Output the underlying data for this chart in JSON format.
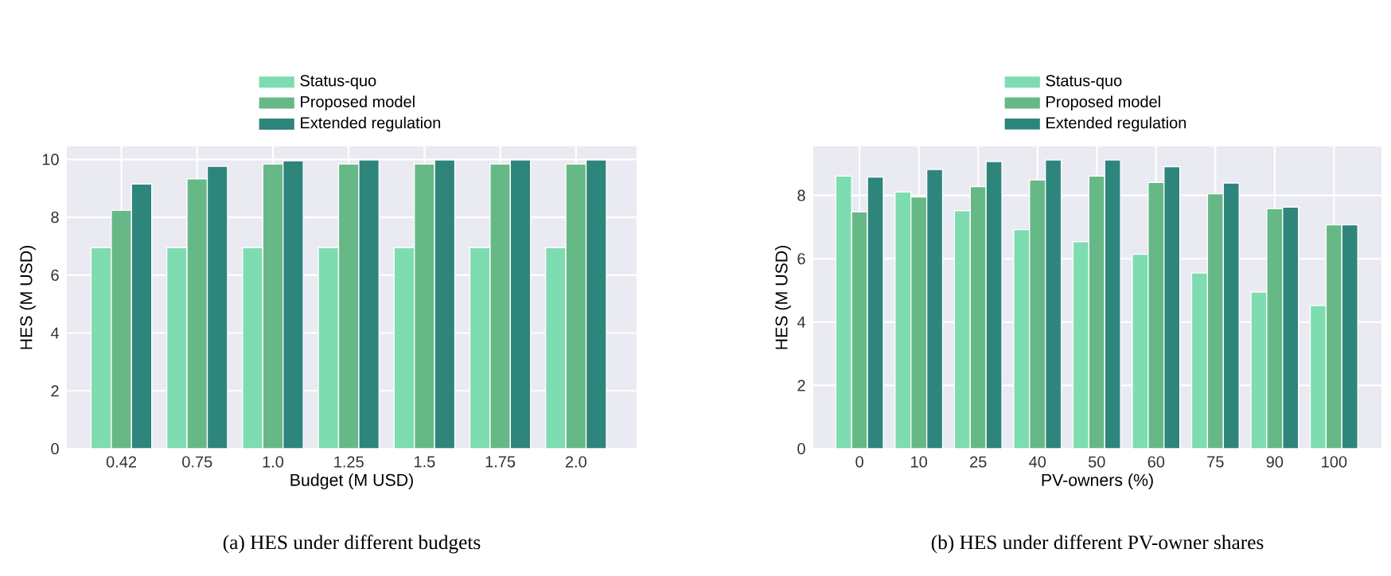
{
  "chart_data": [
    {
      "type": "bar",
      "xlabel": "Budget (M USD)",
      "ylabel": "HES (M USD)",
      "categories": [
        "0.42",
        "0.75",
        "1.0",
        "1.25",
        "1.5",
        "1.75",
        "2.0"
      ],
      "series": [
        {
          "name": "Status-quo",
          "color": "#7ddcb0",
          "values": [
            6.95,
            6.95,
            6.95,
            6.95,
            6.95,
            6.95,
            6.95
          ]
        },
        {
          "name": "Proposed model",
          "color": "#66b886",
          "values": [
            8.24,
            9.33,
            9.84,
            9.84,
            9.84,
            9.84,
            9.84
          ]
        },
        {
          "name": "Extended regulation",
          "color": "#2e857c",
          "values": [
            9.15,
            9.76,
            9.95,
            9.98,
            9.98,
            9.98,
            9.98
          ]
        }
      ],
      "ylim": [
        0,
        10.45
      ],
      "yticks": [
        0,
        2,
        4,
        6,
        8,
        10
      ],
      "grid": true,
      "legend": "top",
      "annotations": [
        "(a) HES under different budgets"
      ]
    },
    {
      "type": "bar",
      "xlabel": "PV-owners (%)",
      "ylabel": "HES (M USD)",
      "categories": [
        "0",
        "10",
        "25",
        "40",
        "50",
        "60",
        "75",
        "90",
        "100"
      ],
      "series": [
        {
          "name": "Status-quo",
          "color": "#7ddcb0",
          "values": [
            8.61,
            8.11,
            7.52,
            6.92,
            6.54,
            6.14,
            5.55,
            4.95,
            4.52
          ]
        },
        {
          "name": "Proposed model",
          "color": "#66b886",
          "values": [
            7.48,
            7.95,
            8.28,
            8.49,
            8.61,
            8.41,
            8.05,
            7.58,
            7.07
          ]
        },
        {
          "name": "Extended regulation",
          "color": "#2e857c",
          "values": [
            8.58,
            8.82,
            9.07,
            9.12,
            9.12,
            8.91,
            8.39,
            7.63,
            7.07
          ]
        }
      ],
      "ylim": [
        0,
        9.55
      ],
      "yticks": [
        0,
        2,
        4,
        6,
        8
      ],
      "grid": true,
      "legend": "top",
      "annotations": [
        "(b) HES under different PV-owner shares"
      ]
    }
  ]
}
